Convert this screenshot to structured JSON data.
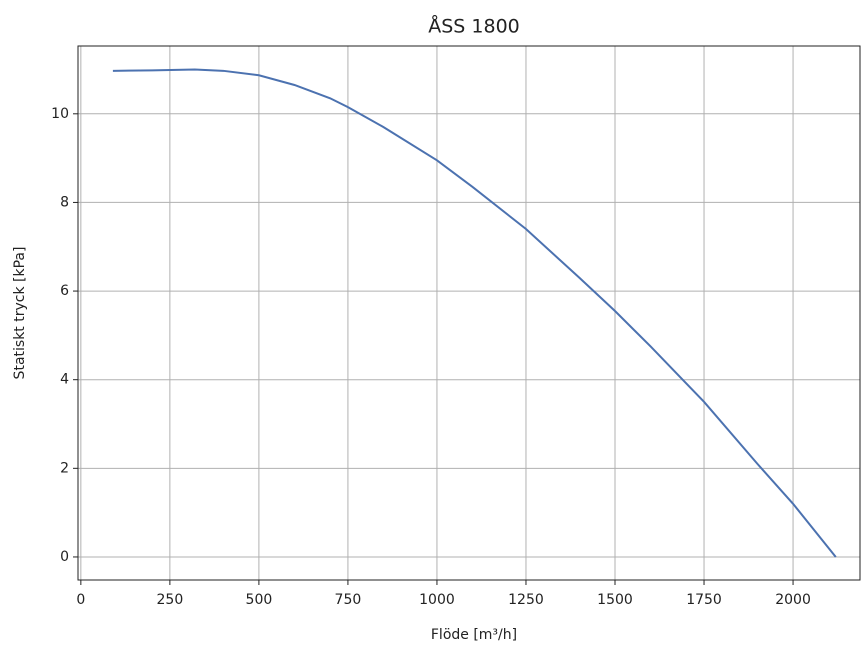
{
  "chart_data": {
    "type": "line",
    "title": "ÅSS 1800",
    "xlabel": "Flöde [m³/h]",
    "ylabel": "Statiskt tryck [kPa]",
    "x": [
      90,
      200,
      320,
      400,
      500,
      600,
      700,
      750,
      850,
      1000,
      1100,
      1250,
      1400,
      1500,
      1600,
      1750,
      1900,
      2000,
      2120
    ],
    "series": [
      {
        "name": "ÅSS 1800",
        "color": "#4c72b0",
        "values": [
          10.97,
          10.98,
          11.0,
          10.97,
          10.87,
          10.65,
          10.35,
          10.15,
          9.7,
          8.95,
          8.35,
          7.4,
          6.3,
          5.55,
          4.75,
          3.5,
          2.1,
          1.2,
          0
        ]
      }
    ],
    "xlim": [
      -8,
      2188
    ],
    "ylim": [
      -0.52,
      11.53
    ],
    "xticks": [
      0,
      250,
      500,
      750,
      1000,
      1250,
      1500,
      1750,
      2000
    ],
    "yticks": [
      0,
      2,
      4,
      6,
      8,
      10
    ],
    "grid": true
  }
}
